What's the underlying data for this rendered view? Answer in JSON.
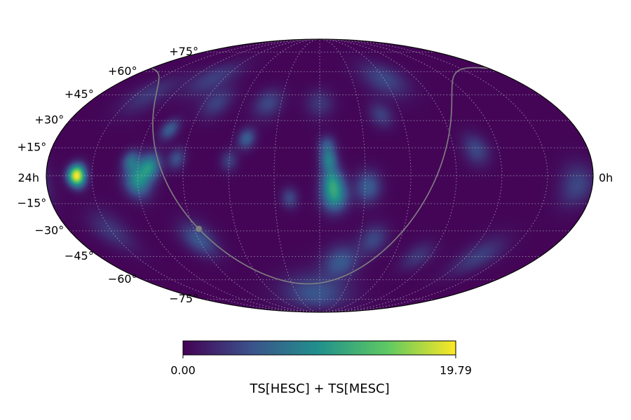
{
  "chart_data": {
    "type": "heatmap",
    "title": "",
    "projection": "mollweide",
    "grid": true,
    "ra_labels": {
      "left": "24h",
      "right": "0h"
    },
    "dec_ticks": [
      {
        "dec": 75,
        "label": "+75°"
      },
      {
        "dec": 60,
        "label": "+60°"
      },
      {
        "dec": 45,
        "label": "+45°"
      },
      {
        "dec": 30,
        "label": "+30°"
      },
      {
        "dec": 15,
        "label": "+15°"
      },
      {
        "dec": -15,
        "label": "−15°"
      },
      {
        "dec": -30,
        "label": "−30°"
      },
      {
        "dec": -45,
        "label": "−45°"
      },
      {
        "dec": -60,
        "label": "−60°"
      },
      {
        "dec": -75,
        "label": "−75°"
      }
    ],
    "colorbar": {
      "label": "TS[HESC] + TS[MESC]",
      "min": 0.0,
      "max": 19.79,
      "min_label": "0.00",
      "max_label": "19.79",
      "colormap": [
        "#440154",
        "#3b528b",
        "#21918c",
        "#5ec962",
        "#fde725"
      ]
    },
    "hotspots": [
      {
        "lon": 160,
        "lat": 0,
        "value": 19.79,
        "width_deg": 4
      },
      {
        "lon": 120,
        "lat": -3,
        "value": 9.0,
        "width_deg": 6
      },
      {
        "lon": 112,
        "lat": 5,
        "value": 8.5,
        "width_deg": 5
      },
      {
        "lon": 125,
        "lat": 8,
        "value": 6.0,
        "width_deg": 4
      },
      {
        "lon": 95,
        "lat": 9,
        "value": 4.5,
        "width_deg": 4
      },
      {
        "lon": 105,
        "lat": 25,
        "value": 5.5,
        "width_deg": 4
      },
      {
        "lon": 90,
        "lat": -35,
        "value": 5.0,
        "width_deg": 7
      },
      {
        "lon": -10,
        "lat": -11,
        "value": 9.5,
        "width_deg": 6
      },
      {
        "lon": -8,
        "lat": -2,
        "value": 7.0,
        "width_deg": 5
      },
      {
        "lon": -6,
        "lat": 8,
        "value": 7.0,
        "width_deg": 4
      },
      {
        "lon": -5,
        "lat": 16,
        "value": 5.0,
        "width_deg": 4
      },
      {
        "lon": -32,
        "lat": -6,
        "value": 5.5,
        "width_deg": 6
      },
      {
        "lon": -18,
        "lat": -48,
        "value": 5.0,
        "width_deg": 7
      },
      {
        "lon": -40,
        "lat": -35,
        "value": 4.0,
        "width_deg": 6
      },
      {
        "lon": 5,
        "lat": -70,
        "value": 5.0,
        "width_deg": 10
      },
      {
        "lon": 50,
        "lat": 20,
        "value": 5.5,
        "width_deg": 4
      },
      {
        "lon": -45,
        "lat": 33,
        "value": 3.5,
        "width_deg": 5
      },
      {
        "lon": -105,
        "lat": 14,
        "value": 4.0,
        "width_deg": 6
      },
      {
        "lon": -170,
        "lat": -5,
        "value": 4.0,
        "width_deg": 8
      },
      {
        "lon": 20,
        "lat": -12,
        "value": 4.0,
        "width_deg": 4
      },
      {
        "lon": 60,
        "lat": 8,
        "value": 3.5,
        "width_deg": 4
      },
      {
        "lon": 40,
        "lat": 40,
        "value": 4.0,
        "width_deg": 6
      },
      {
        "lon": 80,
        "lat": 40,
        "value": 3.5,
        "width_deg": 6
      },
      {
        "lon": 100,
        "lat": 55,
        "value": 3.5,
        "width_deg": 8
      },
      {
        "lon": -60,
        "lat": 55,
        "value": 4.0,
        "width_deg": 8
      },
      {
        "lon": 0,
        "lat": 40,
        "value": 3.0,
        "width_deg": 6
      },
      {
        "lon": -130,
        "lat": -45,
        "value": 3.5,
        "width_deg": 8
      },
      {
        "lon": -80,
        "lat": -45,
        "value": 3.0,
        "width_deg": 6
      },
      {
        "lon": 140,
        "lat": 45,
        "value": 3.0,
        "width_deg": 8
      },
      {
        "lon": 150,
        "lat": -30,
        "value": 3.0,
        "width_deg": 8
      }
    ],
    "galactic_plane": {
      "color": "#808080",
      "galactic_center": {
        "ra_deg": 266.4,
        "dec_deg": -28.9
      }
    }
  }
}
